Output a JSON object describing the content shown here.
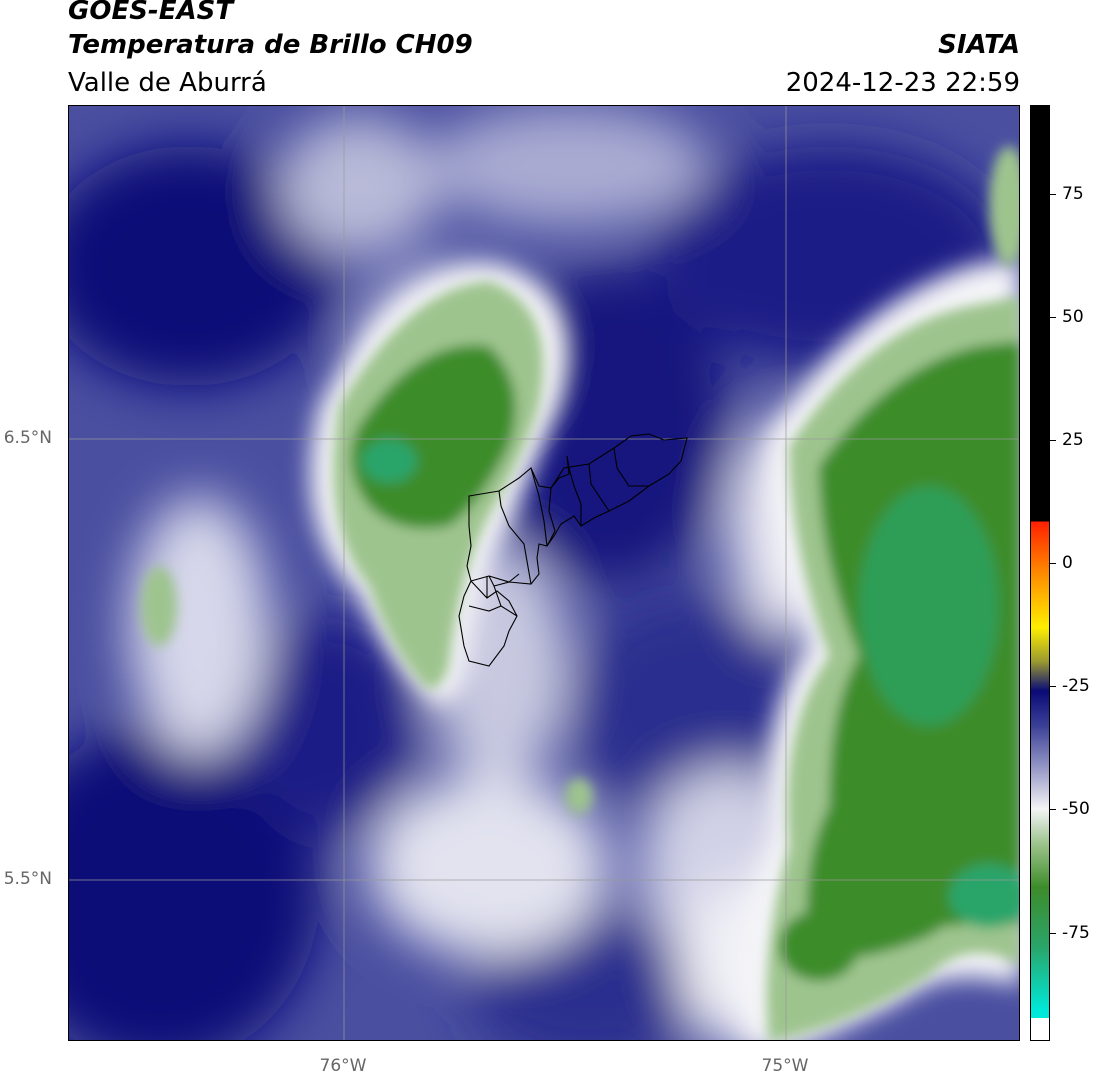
{
  "header": {
    "title": "GOES-EAST",
    "subtitle": "Temperatura de Brillo CH09",
    "organization": "SIATA",
    "region": "Valle de Aburrá",
    "datetime": "2024-12-23 22:59"
  },
  "map": {
    "lat_labels": [
      "6.5°N",
      "5.5°N"
    ],
    "lon_labels": [
      "76°W",
      "75°W"
    ],
    "boundary_color": "#000000",
    "gridline_color": "#999999"
  },
  "colorbar": {
    "ticks": [
      "75",
      "50",
      "25",
      "0",
      "-25",
      "-50",
      "-75"
    ],
    "tick_values": [
      75,
      50,
      25,
      0,
      -25,
      -50,
      -75
    ],
    "range": [
      -97,
      93
    ],
    "colors": {
      "very_cold": "#ffffff",
      "cold_cyan": "#00e8d8",
      "teal_green": "#2aa56a",
      "green": "#3d8c2a",
      "light_green": "#9ec48e",
      "white": "#f4f4f6",
      "lavender": "#9a9cc8",
      "blue": "#3a3f96",
      "navy": "#0a0a78",
      "yellow": "#ffee00",
      "orange": "#ff8a00",
      "red": "#ff2000",
      "black": "#000000"
    }
  }
}
